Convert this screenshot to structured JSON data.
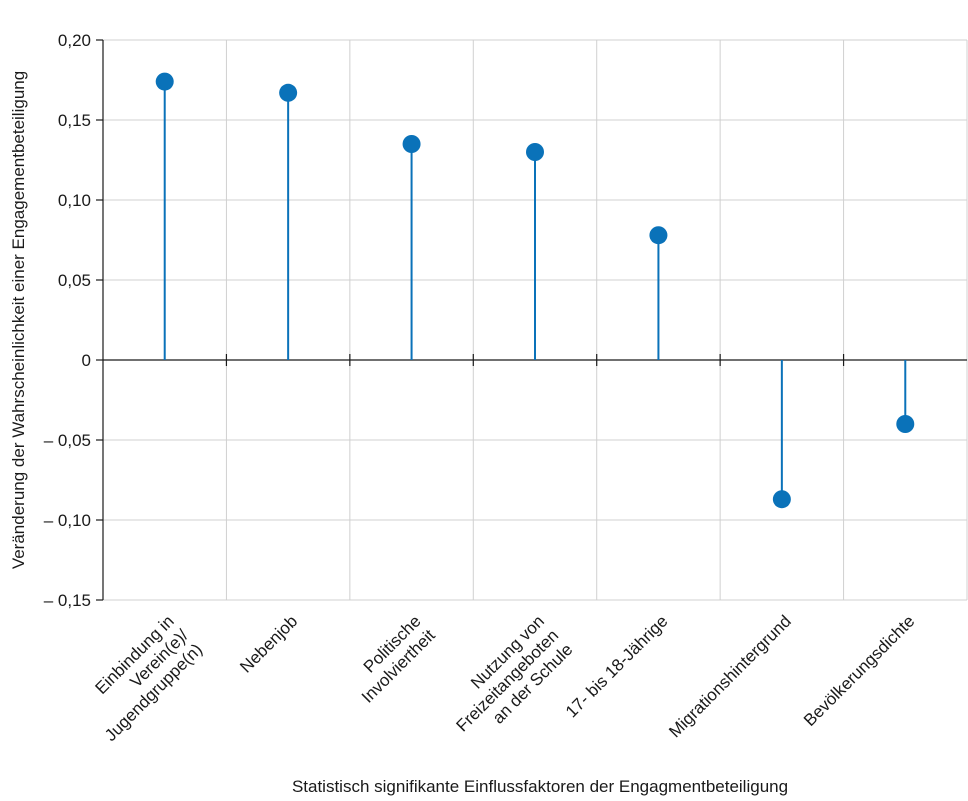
{
  "chart_data": {
    "type": "lollipop",
    "categories": [
      [
        "Einbindung in",
        "Verein(e)/",
        "Jugendgruppe(n)"
      ],
      [
        "Nebenjob"
      ],
      [
        "Politische",
        "Involviertheit"
      ],
      [
        "Nutzung von",
        "Freizeitangeboten",
        "an der Schule"
      ],
      [
        "17- bis 18-Jährige"
      ],
      [
        "Migrationshintergrund"
      ],
      [
        "Bevölkerungsdichte"
      ]
    ],
    "values": [
      0.174,
      0.167,
      0.135,
      0.13,
      0.078,
      -0.087,
      -0.04
    ],
    "ylim": [
      -0.15,
      0.2
    ],
    "yticks": [
      0.2,
      0.15,
      0.1,
      0.05,
      0,
      -0.05,
      -0.1,
      -0.15
    ],
    "ytick_labels": [
      "0,20",
      "0,15",
      "0,10",
      "0,05",
      "0",
      "– 0,05",
      "– 0,10",
      "– 0,15"
    ],
    "xlabel": "Statistisch signifikante Einflussfaktoren der Engagmentbeteiligung",
    "ylabel": "Veränderung der Wahrscheinlichkeit einer Engagementbeteiligung",
    "grid": true,
    "colors": {
      "marker": "#0a72b9",
      "stem": "#0a72b9",
      "grid": "#d0d0d0",
      "axis": "#1a1a1a"
    }
  }
}
